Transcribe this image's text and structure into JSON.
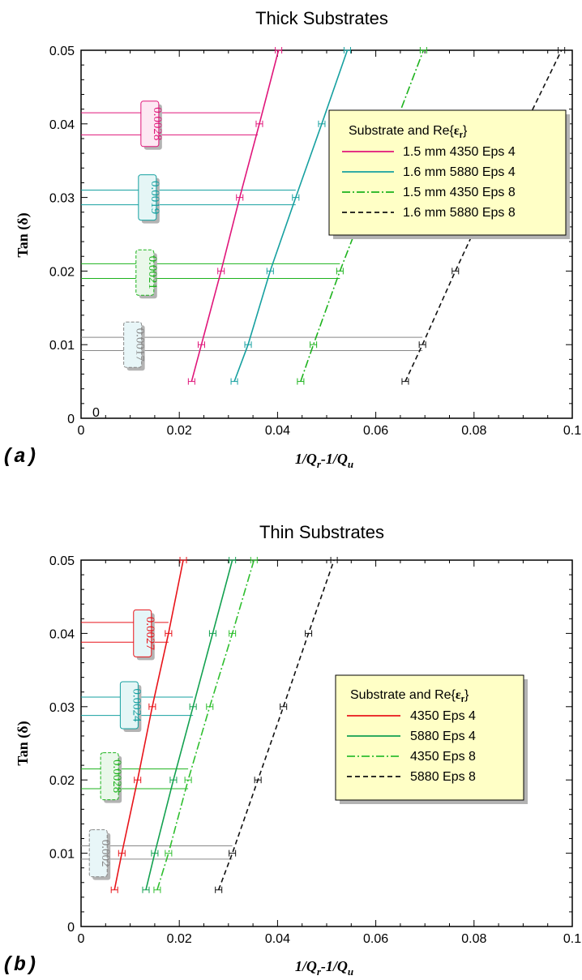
{
  "chart_data": [
    {
      "type": "line",
      "panel_label": "(a)",
      "title": "Thick Substrates",
      "xlabel": "1/Q_r-1/Q_u",
      "xlabel_parts": {
        "main": "1/Q",
        "sub1": "r",
        "mid": "-1/Q",
        "sub2": "u"
      },
      "ylabel": "Tan(δ)",
      "ylabel_parts": {
        "main": "Tan",
        "open": "(",
        "sym": "δ",
        "close": ")"
      },
      "xlim": [
        0,
        0.1
      ],
      "ylim": [
        0,
        0.05
      ],
      "xticks": [
        "0",
        "0.02",
        "0.04",
        "0.06",
        "0.08",
        "0.1"
      ],
      "yticks": [
        "0",
        "0.01",
        "0.02",
        "0.03",
        "0.04",
        "0.05"
      ],
      "extra_origin_label": "0",
      "legend": {
        "title_main": "Substrate and Re{",
        "title_sym": "ε",
        "title_sub": "r",
        "title_end": "}",
        "placement": "top-right"
      },
      "series": [
        {
          "name": "1.5 mm 4350 Eps 4",
          "color": "#e0167a",
          "dash": "solid",
          "x": [
            0.0225,
            0.0245,
            0.0285,
            0.0323,
            0.0363,
            0.0402
          ],
          "y": [
            0.005,
            0.01,
            0.02,
            0.03,
            0.04,
            0.05
          ]
        },
        {
          "name": "1.6 mm 5880 Eps 4",
          "color": "#16a0a0",
          "dash": "solid",
          "x": [
            0.0312,
            0.034,
            0.0385,
            0.0437,
            0.049,
            0.0542
          ],
          "y": [
            0.005,
            0.01,
            0.02,
            0.03,
            0.04,
            0.05
          ]
        },
        {
          "name": "1.5 mm 4350 Eps 8",
          "color": "#1db31d",
          "dash": "dashdot",
          "x": [
            0.0447,
            0.0473,
            0.0527,
            0.0585,
            0.064,
            0.0697
          ],
          "y": [
            0.005,
            0.01,
            0.02,
            0.03,
            0.04,
            0.05
          ]
        },
        {
          "name": "1.6 mm 5880 Eps 8",
          "color": "#111111",
          "dash": "dashed",
          "x": [
            0.066,
            0.0695,
            0.0762,
            0.0832,
            0.0905,
            0.0978
          ],
          "y": [
            0.005,
            0.01,
            0.02,
            0.03,
            0.04,
            0.05
          ]
        }
      ],
      "annotations": [
        {
          "text": "0.0028",
          "color": "#e0167a",
          "box_fill": "#fde8f3",
          "y1": 0.0415,
          "y2": 0.0385,
          "x_end1": 0.0365,
          "x_end2": 0.036,
          "label_x": 0.014,
          "label_y": 0.04
        },
        {
          "text": "0.0019",
          "color": "#16a0a0",
          "box_fill": "#e5f6f6",
          "y1": 0.031,
          "y2": 0.029,
          "x_end1": 0.0437,
          "x_end2": 0.0437,
          "label_x": 0.0135,
          "label_y": 0.03
        },
        {
          "text": "0.0021",
          "color": "#1db31d",
          "box_fill": "#eaf8ea",
          "y1": 0.021,
          "y2": 0.019,
          "x_end1": 0.0527,
          "x_end2": 0.0527,
          "label_x": 0.013,
          "label_y": 0.0198
        },
        {
          "text": "0.0017",
          "color": "#888888",
          "box_fill": "#e8f6f8",
          "y1": 0.011,
          "y2": 0.0092,
          "x_end1": 0.0695,
          "x_end2": 0.0695,
          "label_x": 0.0105,
          "label_y": 0.01
        }
      ]
    },
    {
      "type": "line",
      "panel_label": "(b)",
      "title": "Thin Substrates",
      "xlabel": "1/Q_r-1/Q_u",
      "xlabel_parts": {
        "main": "1/Q",
        "sub1": "r",
        "mid": "-1/Q",
        "sub2": "u"
      },
      "ylabel": "Tan(δ)",
      "ylabel_parts": {
        "main": "Tan",
        "open": "(",
        "sym": "δ",
        "close": ")"
      },
      "xlim": [
        0,
        0.1
      ],
      "ylim": [
        0,
        0.05
      ],
      "xticks": [
        "0",
        "0.02",
        "0.04",
        "0.06",
        "0.08",
        "0.1"
      ],
      "yticks": [
        "0",
        "0.01",
        "0.02",
        "0.03",
        "0.04",
        "0.05"
      ],
      "legend": {
        "title_main": "Substrate and Re{",
        "title_sym": "ε",
        "title_sub": "r",
        "title_end": "}",
        "placement": "center-right"
      },
      "series": [
        {
          "name": "4350 Eps 4",
          "color": "#e8141a",
          "dash": "solid",
          "x": [
            0.0068,
            0.0083,
            0.0115,
            0.0145,
            0.0178,
            0.0208
          ],
          "y": [
            0.005,
            0.01,
            0.02,
            0.03,
            0.04,
            0.05
          ]
        },
        {
          "name": "5880 Eps 4",
          "color": "#13a150",
          "dash": "solid",
          "x": [
            0.0132,
            0.015,
            0.0188,
            0.0228,
            0.0268,
            0.0308
          ],
          "y": [
            0.005,
            0.01,
            0.02,
            0.03,
            0.04,
            0.05
          ]
        },
        {
          "name": "4350 Eps 8",
          "color": "#2fbf2f",
          "dash": "dashdot",
          "x": [
            0.0155,
            0.0178,
            0.0218,
            0.0262,
            0.0308,
            0.0352
          ],
          "y": [
            0.005,
            0.01,
            0.02,
            0.03,
            0.04,
            0.05
          ]
        },
        {
          "name": "5880 Eps 8",
          "color": "#111111",
          "dash": "dashed",
          "x": [
            0.028,
            0.0308,
            0.036,
            0.0412,
            0.0463,
            0.0515
          ],
          "y": [
            0.005,
            0.01,
            0.02,
            0.03,
            0.04,
            0.05
          ]
        }
      ],
      "annotations": [
        {
          "text": "0.0027",
          "color": "#e8141a",
          "box_fill": "#e5f6f8",
          "y1": 0.0415,
          "y2": 0.0388,
          "x_end1": 0.0178,
          "x_end2": 0.0178,
          "label_x": 0.0125,
          "label_y": 0.04
        },
        {
          "text": "0.0024",
          "color": "#16a0a0",
          "box_fill": "#e5f6f6",
          "y1": 0.0313,
          "y2": 0.0288,
          "x_end1": 0.0228,
          "x_end2": 0.0228,
          "label_x": 0.0098,
          "label_y": 0.0302
        },
        {
          "text": "0.0028",
          "color": "#1db31d",
          "box_fill": "#eaf8ea",
          "y1": 0.0215,
          "y2": 0.0188,
          "x_end1": 0.0218,
          "x_end2": 0.0218,
          "label_x": 0.0058,
          "label_y": 0.0205
        },
        {
          "text": "0.002",
          "color": "#888888",
          "box_fill": "#e8f6f8",
          "y1": 0.011,
          "y2": 0.0092,
          "x_end1": 0.0308,
          "x_end2": 0.0308,
          "label_x": 0.0035,
          "label_y": 0.01
        }
      ]
    }
  ]
}
